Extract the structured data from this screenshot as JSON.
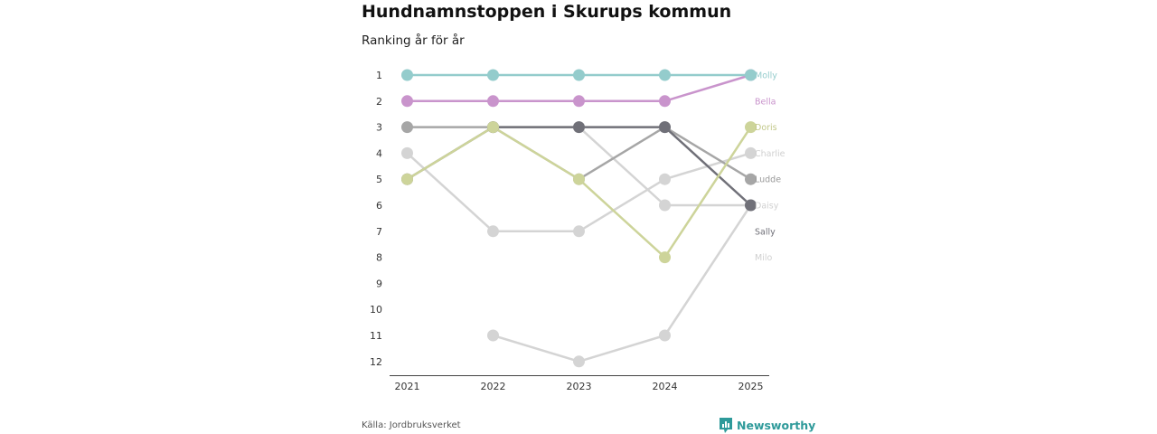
{
  "title": "Hundnamnstoppen i Skurups kommun",
  "subtitle": "Ranking år för år",
  "source": "Källa: Jordbruksverket",
  "brand": {
    "name": "Newsworthy",
    "icon": "bar-chart-logo-icon",
    "color": "#2e9a9a"
  },
  "chart_data": {
    "type": "line",
    "title": "Hundnamnstoppen i Skurups kommun",
    "subtitle": "Ranking år för år",
    "xlabel": "",
    "ylabel": "",
    "categories": [
      "2021",
      "2022",
      "2023",
      "2024",
      "2025"
    ],
    "yticks": [
      "1",
      "2",
      "3",
      "4",
      "5",
      "6",
      "7",
      "8",
      "9",
      "10",
      "11",
      "12"
    ],
    "ylim": [
      1,
      12
    ],
    "y_inverted": true,
    "grid": false,
    "series": [
      {
        "name": "Charlie",
        "color": "#d4d4d4",
        "values": [
          4,
          7,
          7,
          5,
          4
        ]
      },
      {
        "name": "Daisy",
        "color": "#d4d4d4",
        "values": [
          null,
          3,
          3,
          6,
          6
        ]
      },
      {
        "name": "Milo",
        "color": "#d4d4d4",
        "values": [
          null,
          11,
          12,
          11,
          6
        ]
      },
      {
        "name": "Ludde",
        "color": "#a6a6a6",
        "values": [
          3,
          3,
          5,
          3,
          5
        ]
      },
      {
        "name": "Sally",
        "color": "#707078",
        "values": [
          5,
          3,
          3,
          3,
          6
        ]
      },
      {
        "name": "Doris",
        "color": "#cdd49a",
        "values": [
          5,
          3,
          5,
          8,
          3
        ]
      },
      {
        "name": "Bella",
        "color": "#c994cc",
        "values": [
          2,
          2,
          2,
          2,
          1
        ]
      },
      {
        "name": "Molly",
        "color": "#94cccc",
        "values": [
          1,
          1,
          1,
          1,
          1
        ]
      }
    ],
    "end_labels": [
      {
        "name": "Molly",
        "rank": 1,
        "color": "#94cccc"
      },
      {
        "name": "Bella",
        "rank": 2,
        "color": "#c994cc"
      },
      {
        "name": "Doris",
        "rank": 3,
        "color": "#c2c88a"
      },
      {
        "name": "Charlie",
        "rank": 4,
        "color": "#d0d0d0"
      },
      {
        "name": "Ludde",
        "rank": 5,
        "color": "#999999"
      },
      {
        "name": "Daisy",
        "rank": 6,
        "color": "#d0d0d0"
      },
      {
        "name": "Sally",
        "rank": 7,
        "color": "#707078"
      },
      {
        "name": "Milo",
        "rank": 8,
        "color": "#d0d0d0"
      }
    ]
  }
}
